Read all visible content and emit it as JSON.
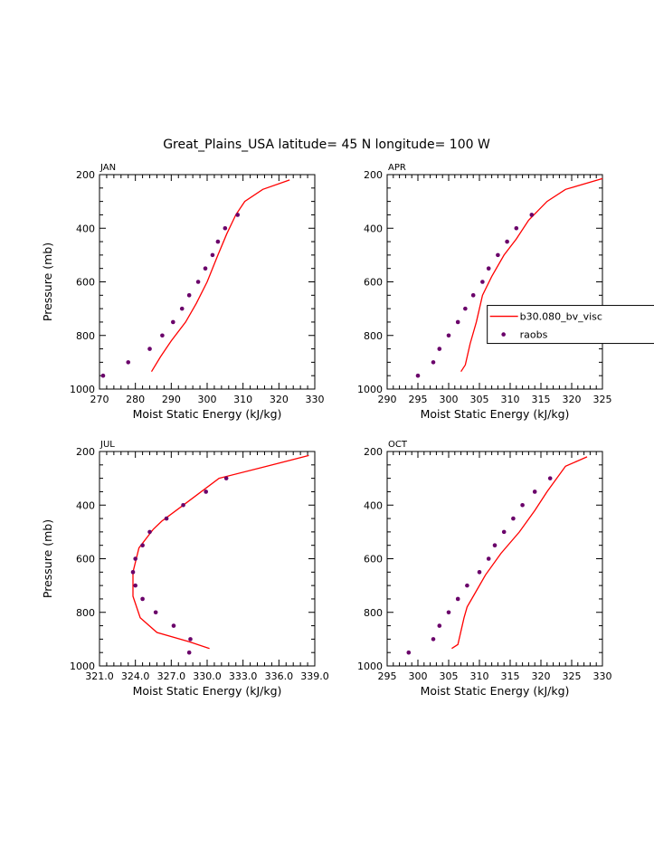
{
  "figure": {
    "title": "Great_Plains_USA  latitude= 45 N longitude= 100 W",
    "colors": {
      "model": "#ff0000",
      "obs": "#6a006a",
      "axis": "#000000"
    }
  },
  "chart_data": [
    {
      "type": "line",
      "panel": "JAN",
      "title": "Great_Plains_USA  latitude= 45 N longitude= 100 W",
      "xlabel": "Moist Static Energy (kJ/kg)",
      "ylabel": "Pressure (mb)",
      "xlim": [
        270,
        330
      ],
      "ylim": [
        1000,
        200
      ],
      "xticks": [
        "270",
        "280",
        "290",
        "300",
        "310",
        "320",
        "330"
      ],
      "xtick_values": [
        270,
        280,
        290,
        300,
        310,
        320,
        330
      ],
      "yticks": [
        "200",
        "400",
        "600",
        "800",
        "1000"
      ],
      "ytick_values": [
        200,
        400,
        600,
        800,
        1000
      ],
      "series": [
        {
          "name": "b30.080_bv_visc",
          "kind": "line",
          "x": [
            284.5,
            287,
            290,
            294,
            297,
            300,
            303,
            305.5,
            308,
            310.5,
            315.5,
            323
          ],
          "y": [
            935,
            880,
            820,
            750,
            680,
            600,
            500,
            420,
            350,
            300,
            255,
            220
          ]
        },
        {
          "name": "raobs",
          "kind": "points",
          "x": [
            271,
            278,
            284,
            287.5,
            290.5,
            293,
            295,
            297.5,
            299.5,
            301.5,
            303,
            305,
            308.5
          ],
          "y": [
            950,
            900,
            850,
            800,
            750,
            700,
            650,
            600,
            550,
            500,
            450,
            400,
            350
          ]
        }
      ]
    },
    {
      "type": "line",
      "panel": "APR",
      "title": "Great_Plains_USA  latitude= 45 N longitude= 100 W",
      "xlabel": "Moist Static Energy (kJ/kg)",
      "ylabel": "",
      "xlim": [
        290,
        325
      ],
      "ylim": [
        1000,
        200
      ],
      "xticks": [
        "290",
        "295",
        "300",
        "305",
        "310",
        "315",
        "320",
        "325"
      ],
      "xtick_values": [
        290,
        295,
        300,
        305,
        310,
        315,
        320,
        325
      ],
      "yticks": [
        "200",
        "400",
        "600",
        "800",
        "1000"
      ],
      "ytick_values": [
        200,
        400,
        600,
        800,
        1000
      ],
      "legend": {
        "position": "right",
        "entries": [
          "b30.080_bv_visc",
          "raobs"
        ]
      },
      "series": [
        {
          "name": "b30.080_bv_visc",
          "kind": "line",
          "x": [
            302,
            302.7,
            303.5,
            304.5,
            305.5,
            307,
            309,
            311,
            313,
            316,
            319,
            325
          ],
          "y": [
            935,
            910,
            830,
            750,
            650,
            580,
            500,
            440,
            370,
            300,
            255,
            215
          ]
        },
        {
          "name": "raobs",
          "kind": "points",
          "x": [
            295,
            297.5,
            298.5,
            300,
            301.5,
            302.7,
            304,
            305.5,
            306.5,
            308,
            309.5,
            311,
            313.5
          ],
          "y": [
            950,
            900,
            850,
            800,
            750,
            700,
            650,
            600,
            550,
            500,
            450,
            400,
            350
          ]
        }
      ]
    },
    {
      "type": "line",
      "panel": "JUL",
      "title": "Great_Plains_USA  latitude= 45 N longitude= 100 W",
      "xlabel": "Moist Static Energy (kJ/kg)",
      "ylabel": "Pressure (mb)",
      "xlim": [
        321,
        339
      ],
      "ylim": [
        1000,
        200
      ],
      "xticks": [
        "321.0",
        "324.0",
        "327.0",
        "330.0",
        "333.0",
        "336.0",
        "339.0"
      ],
      "xtick_values": [
        321,
        324,
        327,
        330,
        333,
        336,
        339
      ],
      "yticks": [
        "200",
        "400",
        "600",
        "800",
        "1000"
      ],
      "ytick_values": [
        200,
        400,
        600,
        800,
        1000
      ],
      "series": [
        {
          "name": "b30.080_bv_visc",
          "kind": "line",
          "x": [
            330.2,
            328.5,
            325.8,
            324.4,
            323.8,
            323.8,
            324.3,
            325.5,
            326.2,
            328,
            331,
            335,
            338.5
          ],
          "y": [
            935,
            910,
            875,
            820,
            740,
            650,
            560,
            490,
            460,
            400,
            300,
            255,
            215
          ]
        },
        {
          "name": "raobs",
          "kind": "points",
          "x": [
            328.5,
            328.6,
            327.2,
            325.7,
            324.6,
            324,
            323.8,
            324,
            324.6,
            325.2,
            326.6,
            328,
            329.9,
            331.6
          ],
          "y": [
            950,
            900,
            850,
            800,
            750,
            700,
            650,
            600,
            550,
            500,
            450,
            400,
            350,
            300
          ]
        }
      ]
    },
    {
      "type": "line",
      "panel": "OCT",
      "title": "Great_Plains_USA  latitude= 45 N longitude= 100 W",
      "xlabel": "Moist Static Energy (kJ/kg)",
      "ylabel": "",
      "xlim": [
        295,
        330
      ],
      "ylim": [
        1000,
        200
      ],
      "xticks": [
        "295",
        "300",
        "305",
        "310",
        "315",
        "320",
        "325",
        "330"
      ],
      "xtick_values": [
        295,
        300,
        305,
        310,
        315,
        320,
        325,
        330
      ],
      "yticks": [
        "200",
        "400",
        "600",
        "800",
        "1000"
      ],
      "ytick_values": [
        200,
        400,
        600,
        800,
        1000
      ],
      "series": [
        {
          "name": "b30.080_bv_visc",
          "kind": "line",
          "x": [
            305.5,
            306.5,
            307.5,
            308,
            309,
            311,
            313.5,
            316.5,
            319,
            321,
            324,
            327.5
          ],
          "y": [
            935,
            920,
            820,
            780,
            740,
            660,
            580,
            500,
            420,
            350,
            255,
            220
          ]
        },
        {
          "name": "raobs",
          "kind": "points",
          "x": [
            298.5,
            302.5,
            303.5,
            305,
            306.5,
            308,
            310,
            311.5,
            312.5,
            314,
            315.5,
            317,
            319,
            321.5
          ],
          "y": [
            950,
            900,
            850,
            800,
            750,
            700,
            650,
            600,
            550,
            500,
            450,
            400,
            350,
            300
          ]
        }
      ]
    }
  ]
}
